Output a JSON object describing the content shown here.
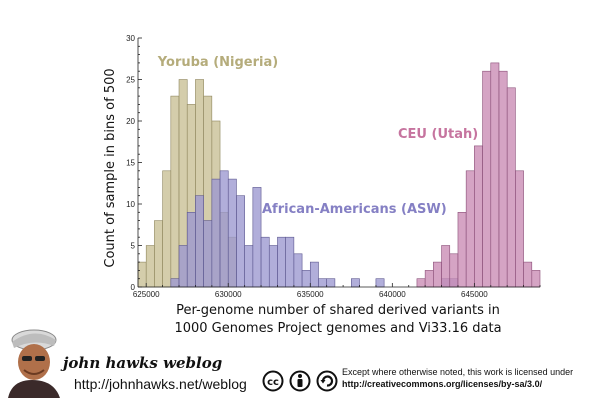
{
  "chart_data": {
    "type": "bar",
    "ylabel": "Count of sample in bins of 500",
    "xlabel_lines": [
      "Per-genome number of shared derived variants in",
      "1000 Genomes Project genomes and Vi33.16 data"
    ],
    "xlim": [
      624500,
      649000
    ],
    "ylim": [
      0,
      30
    ],
    "bin_width": 500,
    "x_ticks": [
      625000,
      630000,
      635000,
      640000,
      645000
    ],
    "x_tick_labels": [
      "625000",
      "630000",
      "635000",
      "640000",
      "645000"
    ],
    "y_ticks": [
      0,
      5,
      10,
      15,
      20,
      25,
      30
    ],
    "y_tick_labels": [
      "0",
      "5",
      "10",
      "15",
      "20",
      "25",
      "30"
    ],
    "series": [
      {
        "name": "Yoruba (Nigeria)",
        "color": "#c8bf94",
        "stroke": "#8f875f",
        "label_color": "#b5ac7b",
        "bins": [
          {
            "x": 624500,
            "y": 3
          },
          {
            "x": 625000,
            "y": 5
          },
          {
            "x": 625500,
            "y": 8
          },
          {
            "x": 626000,
            "y": 14
          },
          {
            "x": 626500,
            "y": 23
          },
          {
            "x": 627000,
            "y": 25
          },
          {
            "x": 627500,
            "y": 22
          },
          {
            "x": 628000,
            "y": 25
          },
          {
            "x": 628500,
            "y": 23
          },
          {
            "x": 629000,
            "y": 20
          },
          {
            "x": 629500,
            "y": 9
          },
          {
            "x": 630000,
            "y": 6
          }
        ]
      },
      {
        "name": "African-Americans (ASW)",
        "color": "#9b97cf",
        "stroke": "#5c578f",
        "label_color": "#8580c4",
        "bins": [
          {
            "x": 626500,
            "y": 1
          },
          {
            "x": 627000,
            "y": 5
          },
          {
            "x": 627500,
            "y": 9
          },
          {
            "x": 628000,
            "y": 11
          },
          {
            "x": 628500,
            "y": 8
          },
          {
            "x": 629000,
            "y": 13
          },
          {
            "x": 629500,
            "y": 14
          },
          {
            "x": 630000,
            "y": 13
          },
          {
            "x": 630500,
            "y": 11
          },
          {
            "x": 631000,
            "y": 5
          },
          {
            "x": 631500,
            "y": 12
          },
          {
            "x": 632000,
            "y": 6
          },
          {
            "x": 632500,
            "y": 5
          },
          {
            "x": 633000,
            "y": 6
          },
          {
            "x": 633500,
            "y": 6
          },
          {
            "x": 634000,
            "y": 4
          },
          {
            "x": 634500,
            "y": 2
          },
          {
            "x": 635000,
            "y": 3
          },
          {
            "x": 635500,
            "y": 1
          },
          {
            "x": 636000,
            "y": 1
          },
          {
            "x": 637500,
            "y": 1
          },
          {
            "x": 639000,
            "y": 1
          },
          {
            "x": 643000,
            "y": 1
          },
          {
            "x": 643500,
            "y": 1
          }
        ]
      },
      {
        "name": "CEU (Utah)",
        "color": "#c98bb3",
        "stroke": "#8a4f78",
        "label_color": "#c6749f",
        "bins": [
          {
            "x": 641500,
            "y": 1
          },
          {
            "x": 642000,
            "y": 2
          },
          {
            "x": 642500,
            "y": 3
          },
          {
            "x": 643000,
            "y": 5
          },
          {
            "x": 643500,
            "y": 4
          },
          {
            "x": 644000,
            "y": 9
          },
          {
            "x": 644500,
            "y": 14
          },
          {
            "x": 645000,
            "y": 17
          },
          {
            "x": 645500,
            "y": 26
          },
          {
            "x": 646000,
            "y": 27
          },
          {
            "x": 646500,
            "y": 26
          },
          {
            "x": 647000,
            "y": 24
          },
          {
            "x": 647500,
            "y": 14
          },
          {
            "x": 648000,
            "y": 3
          },
          {
            "x": 648500,
            "y": 2
          }
        ]
      }
    ]
  },
  "footer": {
    "blog_title": "john hawks weblog",
    "blog_url": "http://johnhawks.net/weblog",
    "license_line1": "Except where otherwise noted, this work is licensed under",
    "license_link": "http://creativecommons.org/licenses/by-sa/3.0/",
    "icons": [
      "cc-icon",
      "attribution-icon",
      "share-alike-icon"
    ]
  }
}
